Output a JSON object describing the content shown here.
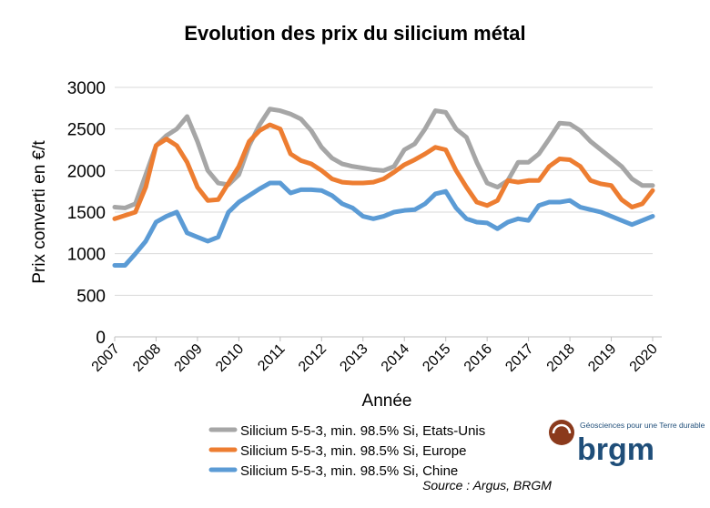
{
  "chart_data": {
    "type": "line",
    "title": "Evolution des prix du silicium métal",
    "y_label": "Prix converti en €/t",
    "x_label": "Année",
    "x": [
      2007,
      2007.25,
      2007.5,
      2007.75,
      2008,
      2008.25,
      2008.5,
      2008.75,
      2009,
      2009.25,
      2009.5,
      2009.75,
      2010,
      2010.25,
      2010.5,
      2010.75,
      2011,
      2011.25,
      2011.5,
      2011.75,
      2012,
      2012.25,
      2012.5,
      2012.75,
      2013,
      2013.25,
      2013.5,
      2013.75,
      2014,
      2014.25,
      2014.5,
      2014.75,
      2015,
      2015.25,
      2015.5,
      2015.75,
      2016,
      2016.25,
      2016.5,
      2016.75,
      2017,
      2017.25,
      2017.5,
      2017.75,
      2018,
      2018.25,
      2018.5,
      2018.75,
      2019,
      2019.25,
      2019.5,
      2019.75,
      2020
    ],
    "series": [
      {
        "name": "Silicium 5-5-3, min. 98.5% Si, Etats-Unis",
        "color": "#a6a6a6",
        "values": [
          1560,
          1550,
          1600,
          1950,
          2300,
          2420,
          2500,
          2650,
          2350,
          2000,
          1850,
          1830,
          1950,
          2300,
          2550,
          2740,
          2720,
          2680,
          2620,
          2480,
          2280,
          2150,
          2080,
          2050,
          2030,
          2010,
          2000,
          2050,
          2250,
          2320,
          2500,
          2720,
          2700,
          2500,
          2400,
          2100,
          1850,
          1800,
          1880,
          2100,
          2100,
          2200,
          2380,
          2570,
          2560,
          2480,
          2350,
          2250,
          2150,
          2050,
          1900,
          1820,
          1820
        ]
      },
      {
        "name": "Silicium 5-5-3, min. 98.5% Si, Europe",
        "color": "#ed7d31",
        "values": [
          1420,
          1460,
          1500,
          1800,
          2300,
          2380,
          2300,
          2100,
          1800,
          1640,
          1650,
          1850,
          2050,
          2350,
          2480,
          2550,
          2500,
          2200,
          2120,
          2080,
          2000,
          1900,
          1860,
          1850,
          1850,
          1860,
          1900,
          1980,
          2070,
          2130,
          2200,
          2280,
          2250,
          2000,
          1800,
          1620,
          1580,
          1640,
          1880,
          1860,
          1880,
          1880,
          2050,
          2140,
          2130,
          2050,
          1880,
          1840,
          1820,
          1650,
          1560,
          1600,
          1760
        ]
      },
      {
        "name": "Silicium 5-5-3, min. 98.5% Si, Chine",
        "color": "#5b9bd5",
        "values": [
          860,
          860,
          1000,
          1150,
          1380,
          1450,
          1500,
          1250,
          1200,
          1150,
          1200,
          1500,
          1620,
          1700,
          1780,
          1850,
          1850,
          1730,
          1770,
          1770,
          1760,
          1700,
          1600,
          1550,
          1450,
          1420,
          1450,
          1500,
          1520,
          1530,
          1600,
          1720,
          1750,
          1550,
          1420,
          1380,
          1370,
          1300,
          1380,
          1420,
          1400,
          1580,
          1620,
          1620,
          1640,
          1560,
          1530,
          1500,
          1450,
          1400,
          1350,
          1400,
          1450
        ]
      }
    ],
    "xlim": [
      2007,
      2020
    ],
    "xticks": [
      2007,
      2008,
      2009,
      2010,
      2011,
      2012,
      2013,
      2014,
      2015,
      2016,
      2017,
      2018,
      2019,
      2020
    ],
    "ylim": [
      0,
      3000
    ],
    "yticks": [
      0,
      500,
      1000,
      1500,
      2000,
      2500,
      3000
    ],
    "grid": true,
    "source": "Source : Argus, BRGM",
    "logo_tagline": "Géosciences pour une Terre durable",
    "logo_name": "brgm"
  }
}
